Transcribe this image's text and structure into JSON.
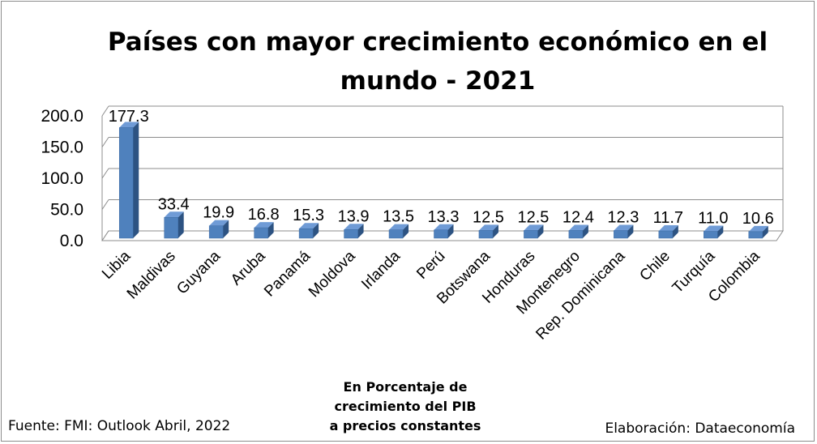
{
  "chart_data": {
    "type": "bar",
    "title_lines": [
      "Países con mayor crecimiento económico en el",
      "mundo - 2021"
    ],
    "categories": [
      "Libia",
      "Maldivas",
      "Guyana",
      "Aruba",
      "Panamá",
      "Moldova",
      "Irlanda",
      "Perú",
      "Botswana",
      "Honduras",
      "Montenegro",
      "Rep. Dominicana",
      "Chile",
      "Turquía",
      "Colombia"
    ],
    "values": [
      177.3,
      33.4,
      19.9,
      16.8,
      15.3,
      13.9,
      13.5,
      13.3,
      12.5,
      12.5,
      12.4,
      12.3,
      11.7,
      11.0,
      10.6
    ],
    "value_labels": [
      "177.3",
      "33.4",
      "19.9",
      "16.8",
      "15.3",
      "13.9",
      "13.5",
      "13.3",
      "12.5",
      "12.5",
      "12.4",
      "12.3",
      "11.7",
      "11.0",
      "10.6"
    ],
    "yticks": [
      "0.0",
      "50.0",
      "100.0",
      "150.0",
      "200.0"
    ],
    "ytick_values": [
      0,
      50,
      100,
      150,
      200
    ],
    "ylim": [
      0,
      200
    ],
    "grid": true,
    "bar_color": "#4f81bd",
    "note_lines": [
      "En Porcentaje de",
      "crecimiento del PIB",
      "a precios constantes"
    ]
  },
  "footer": {
    "source": "Fuente: FMI: Outlook Abril, 2022",
    "credit": "Elaboración: Dataeconomía"
  }
}
